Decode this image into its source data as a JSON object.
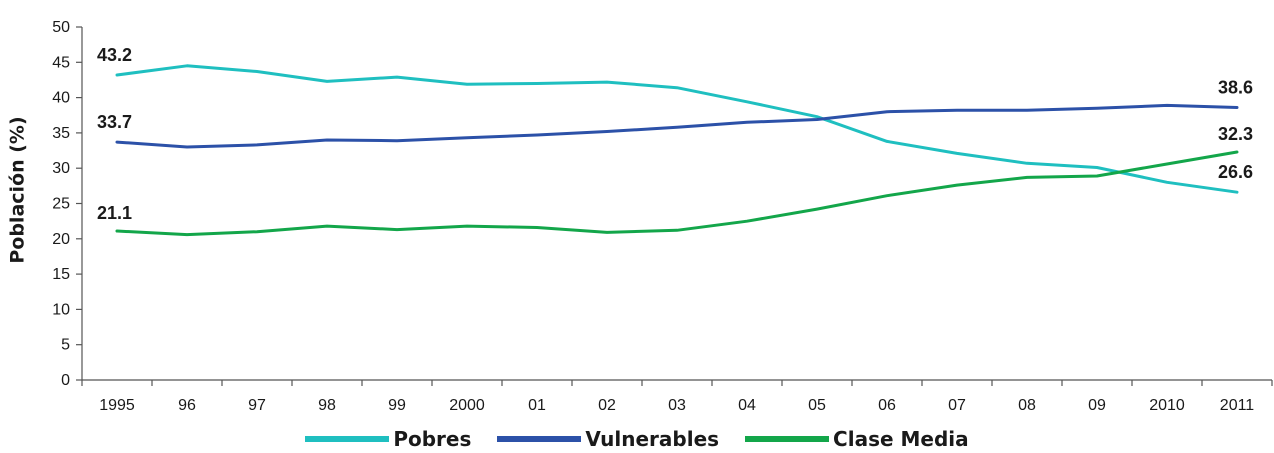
{
  "chart_data": {
    "type": "line",
    "title": "",
    "xlabel": "",
    "ylabel": "Población (%)",
    "ylim": [
      0,
      50
    ],
    "yticks": [
      0,
      5,
      10,
      15,
      20,
      25,
      30,
      35,
      40,
      45,
      50
    ],
    "categories": [
      "1995",
      "96",
      "97",
      "98",
      "99",
      "2000",
      "01",
      "02",
      "03",
      "04",
      "05",
      "06",
      "07",
      "08",
      "09",
      "2010",
      "2011"
    ],
    "grid": false,
    "legend_position": "bottom",
    "series": [
      {
        "name": "Pobres",
        "color": "#1fbfc0",
        "values": [
          43.2,
          44.5,
          43.7,
          42.3,
          42.9,
          41.9,
          42.0,
          42.2,
          41.4,
          39.4,
          37.3,
          33.8,
          32.1,
          30.7,
          30.1,
          28.0,
          26.6
        ],
        "labels": [
          {
            "index": 0,
            "text": "43.2"
          },
          {
            "index": 16,
            "text": "26.6"
          }
        ]
      },
      {
        "name": "Vulnerables",
        "color": "#2c51a8",
        "values": [
          33.7,
          33.0,
          33.3,
          34.0,
          33.9,
          34.3,
          34.7,
          35.2,
          35.8,
          36.5,
          36.9,
          38.0,
          38.2,
          38.2,
          38.5,
          38.9,
          38.6
        ],
        "labels": [
          {
            "index": 0,
            "text": "33.7"
          },
          {
            "index": 16,
            "text": "38.6"
          }
        ]
      },
      {
        "name": "Clase Media",
        "color": "#13a64a",
        "values": [
          21.1,
          20.6,
          21.0,
          21.8,
          21.3,
          21.8,
          21.6,
          20.9,
          21.2,
          22.5,
          24.2,
          26.1,
          27.6,
          28.7,
          28.9,
          30.6,
          32.3
        ],
        "labels": [
          {
            "index": 0,
            "text": "21.1"
          },
          {
            "index": 16,
            "text": "32.3"
          }
        ]
      }
    ]
  }
}
